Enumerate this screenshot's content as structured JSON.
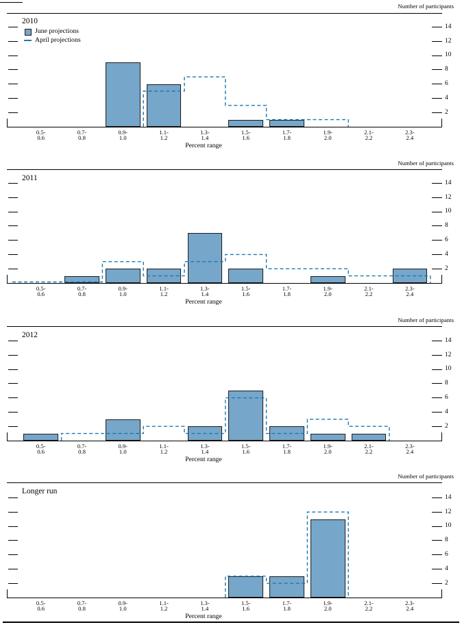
{
  "figure": {
    "ylabel": "Number of participants",
    "xlabel": "Percent range",
    "yticks": [
      2,
      4,
      6,
      8,
      10,
      12,
      14
    ],
    "ylim": [
      0,
      16
    ],
    "legend": [
      {
        "label": "June projections",
        "marker": "filled-bar-swatch"
      },
      {
        "label": "April projections",
        "marker": "dashed-line-swatch"
      }
    ],
    "colors": {
      "bar_fill": "#76a6ca",
      "bar_edge": "#1b1b1b",
      "april_line": "#1b78b2",
      "axis": "#000000"
    },
    "bin_labels": [
      [
        "0.5-",
        "0.6"
      ],
      [
        "0.7-",
        "0.8"
      ],
      [
        "0.9-",
        "1.0"
      ],
      [
        "1.1-",
        "1.2"
      ],
      [
        "1.3-",
        "1.4"
      ],
      [
        "1.5-",
        "1.6"
      ],
      [
        "1.7-",
        "1.8"
      ],
      [
        "1.9-",
        "2.0"
      ],
      [
        "2.1-",
        "2.2"
      ],
      [
        "2.3-",
        "2.4"
      ]
    ]
  },
  "chart_data": [
    {
      "type": "bar",
      "title": "2010",
      "categories": [
        "0.5-0.6",
        "0.7-0.8",
        "0.9-1.0",
        "1.1-1.2",
        "1.3-1.4",
        "1.5-1.6",
        "1.7-1.8",
        "1.9-2.0",
        "2.1-2.2",
        "2.3-2.4"
      ],
      "xlabel": "Percent range",
      "ylabel": "Number of participants",
      "ylim": [
        0,
        16
      ],
      "grid": false,
      "legend_position": "top-left-inside",
      "series": [
        {
          "name": "June projections",
          "style": "bar",
          "values": [
            0,
            0,
            9,
            6,
            0,
            1,
            1,
            0,
            0,
            0
          ]
        },
        {
          "name": "April projections",
          "style": "dashed-step",
          "leading_zero_segment": false,
          "values": [
            0,
            0,
            0,
            5,
            7,
            3,
            1,
            1,
            0,
            0
          ]
        }
      ]
    },
    {
      "type": "bar",
      "title": "2011",
      "categories": [
        "0.5-0.6",
        "0.7-0.8",
        "0.9-1.0",
        "1.1-1.2",
        "1.3-1.4",
        "1.5-1.6",
        "1.7-1.8",
        "1.9-2.0",
        "2.1-2.2",
        "2.3-2.4"
      ],
      "xlabel": "Percent range",
      "ylabel": "Number of participants",
      "ylim": [
        0,
        16
      ],
      "grid": false,
      "series": [
        {
          "name": "June projections",
          "style": "bar",
          "values": [
            0,
            1,
            2,
            2,
            7,
            2,
            0,
            1,
            0,
            2
          ]
        },
        {
          "name": "April projections",
          "style": "dashed-step",
          "leading_zero_segment": true,
          "values": [
            0,
            0,
            3,
            1,
            3,
            4,
            2,
            2,
            1,
            1
          ]
        }
      ]
    },
    {
      "type": "bar",
      "title": "2012",
      "categories": [
        "0.5-0.6",
        "0.7-0.8",
        "0.9-1.0",
        "1.1-1.2",
        "1.3-1.4",
        "1.5-1.6",
        "1.7-1.8",
        "1.9-2.0",
        "2.1-2.2",
        "2.3-2.4"
      ],
      "xlabel": "Percent range",
      "ylabel": "Number of participants",
      "ylim": [
        0,
        16
      ],
      "grid": false,
      "series": [
        {
          "name": "June projections",
          "style": "bar",
          "values": [
            1,
            0,
            3,
            0,
            2,
            7,
            2,
            1,
            1,
            0
          ]
        },
        {
          "name": "April projections",
          "style": "dashed-step",
          "leading_zero_segment": false,
          "values": [
            0,
            1,
            1,
            2,
            1,
            6,
            1,
            3,
            2,
            0
          ]
        }
      ]
    },
    {
      "type": "bar",
      "title": "Longer run",
      "categories": [
        "0.5-0.6",
        "0.7-0.8",
        "0.9-1.0",
        "1.1-1.2",
        "1.3-1.4",
        "1.5-1.6",
        "1.7-1.8",
        "1.9-2.0",
        "2.1-2.2",
        "2.3-2.4"
      ],
      "xlabel": "Percent range",
      "ylabel": "Number of participants",
      "ylim": [
        0,
        16
      ],
      "grid": false,
      "series": [
        {
          "name": "June projections",
          "style": "bar",
          "values": [
            0,
            0,
            0,
            0,
            0,
            3,
            3,
            11,
            0,
            0
          ]
        },
        {
          "name": "April projections",
          "style": "dashed-step",
          "leading_zero_segment": false,
          "values": [
            0,
            0,
            0,
            0,
            0,
            3,
            2,
            12,
            0,
            0
          ]
        }
      ]
    }
  ]
}
